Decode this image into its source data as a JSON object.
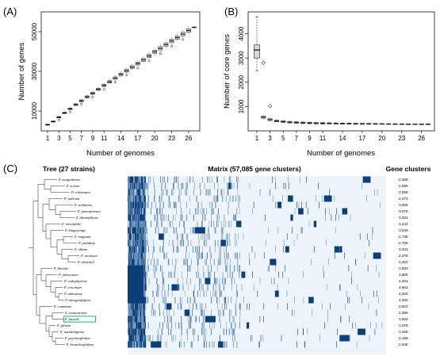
{
  "chart_data": [
    {
      "type": "boxplot",
      "panel_label": "(A)",
      "xlabel": "Number of genomes",
      "ylabel": "Number of genes",
      "x_ticks": [
        1,
        3,
        5,
        7,
        9,
        11,
        14,
        17,
        20,
        23,
        26
      ],
      "y_ticks": [
        10000,
        30000,
        50000
      ],
      "ylim": [
        0,
        60000
      ],
      "x": [
        1,
        2,
        3,
        4,
        5,
        6,
        7,
        8,
        9,
        10,
        11,
        12,
        13,
        14,
        15,
        16,
        17,
        18,
        19,
        20,
        21,
        22,
        23,
        24,
        25,
        26,
        27
      ],
      "y_median": [
        3080,
        4680,
        6850,
        9020,
        11100,
        13200,
        15150,
        17150,
        18900,
        20950,
        22900,
        24700,
        26600,
        28500,
        30300,
        32150,
        33950,
        35800,
        37750,
        39850,
        41600,
        43500,
        45350,
        47050,
        48800,
        50600,
        52300
      ],
      "grid": false
    },
    {
      "type": "boxplot",
      "panel_label": "(B)",
      "xlabel": "Number of genomes",
      "ylabel": "Number of core genes",
      "x_ticks": [
        1,
        3,
        5,
        7,
        9,
        11,
        14,
        17,
        20,
        23,
        26
      ],
      "y_ticks": [
        1000,
        2000,
        3000,
        4000
      ],
      "ylim": [
        0,
        4900
      ],
      "x": [
        1,
        2,
        3,
        4,
        5,
        6,
        7,
        8,
        9,
        10,
        11,
        12,
        13,
        14,
        15,
        16,
        17,
        18,
        19,
        20,
        21,
        22,
        23,
        24,
        25,
        26,
        27
      ],
      "y_median": [
        3330,
        560,
        460,
        405,
        380,
        355,
        340,
        330,
        322,
        315,
        310,
        306,
        302,
        299,
        296,
        293,
        290,
        288,
        286,
        284,
        282,
        281,
        280,
        279,
        278,
        277,
        276
      ],
      "q1": 3000,
      "q3": 3540,
      "whisker_low": 2480,
      "whisker_high": 4700,
      "outliers": [
        {
          "x": 2,
          "y": 2800
        },
        {
          "x": 3,
          "y": 1020
        }
      ],
      "grid": false
    },
    {
      "type": "heatmap",
      "panel_label": "(C)",
      "tree_title": "Tree (27 strains)",
      "matrix_title": "Matrix (57,085 gene clusters)",
      "count_title": "Gene clusters",
      "highlight": "F. faecale",
      "rows": [
        {
          "label": "F. sanguinense",
          "count": "2,369"
        },
        {
          "label": "F. sorrae",
          "count": "2,596"
        },
        {
          "label": "F. columnare",
          "count": "2,058"
        },
        {
          "label": "F. indicum",
          "count": "2,474"
        },
        {
          "label": "F. sediminis",
          "count": "3,006"
        },
        {
          "label": "F. jumunjinense",
          "count": "3,078"
        },
        {
          "label": "F. dinimifilions",
          "count": "3,301"
        },
        {
          "label": "F. inviolabile",
          "count": "3,244"
        },
        {
          "label": "F. kingsejongi",
          "count": "3,549"
        },
        {
          "label": "F. magnum",
          "count": "2,738"
        },
        {
          "label": "F. pallidum",
          "count": "2,708"
        },
        {
          "label": "F. album",
          "count": "3,331"
        },
        {
          "label": "F. arcticum",
          "count": "2,379"
        },
        {
          "label": "F. aliasitoli",
          "count": "3,402"
        },
        {
          "label": "F. fluviale",
          "count": "3,653"
        },
        {
          "label": "F. johnsoniae",
          "count": "4,606"
        },
        {
          "label": "F. endophyticae",
          "count": "4,451"
        },
        {
          "label": "F. crocinum",
          "count": "4,661"
        },
        {
          "label": "F. anhuiense",
          "count": "4,025"
        },
        {
          "label": "F. nitrogenifigens",
          "count": "4,363"
        },
        {
          "label": "F. commune",
          "count": "2,922"
        },
        {
          "label": "F. crassostreae",
          "count": "2,396"
        },
        {
          "label": "F. faecale",
          "count": "3,554"
        },
        {
          "label": "F. gilvum",
          "count": "3,279"
        },
        {
          "label": "F. nackdongense",
          "count": "3,265"
        },
        {
          "label": "F. psychrophilum",
          "count": "2,199"
        },
        {
          "label": "F. branchiophilum",
          "count": "2,648"
        }
      ]
    }
  ],
  "colors": {
    "heat_background": "#eef4fb",
    "heat_dark": "#0c3f78",
    "heat_mid": "#6b94bf",
    "highlight_box": "#22b573",
    "box_fill": "#d9d9d9"
  }
}
